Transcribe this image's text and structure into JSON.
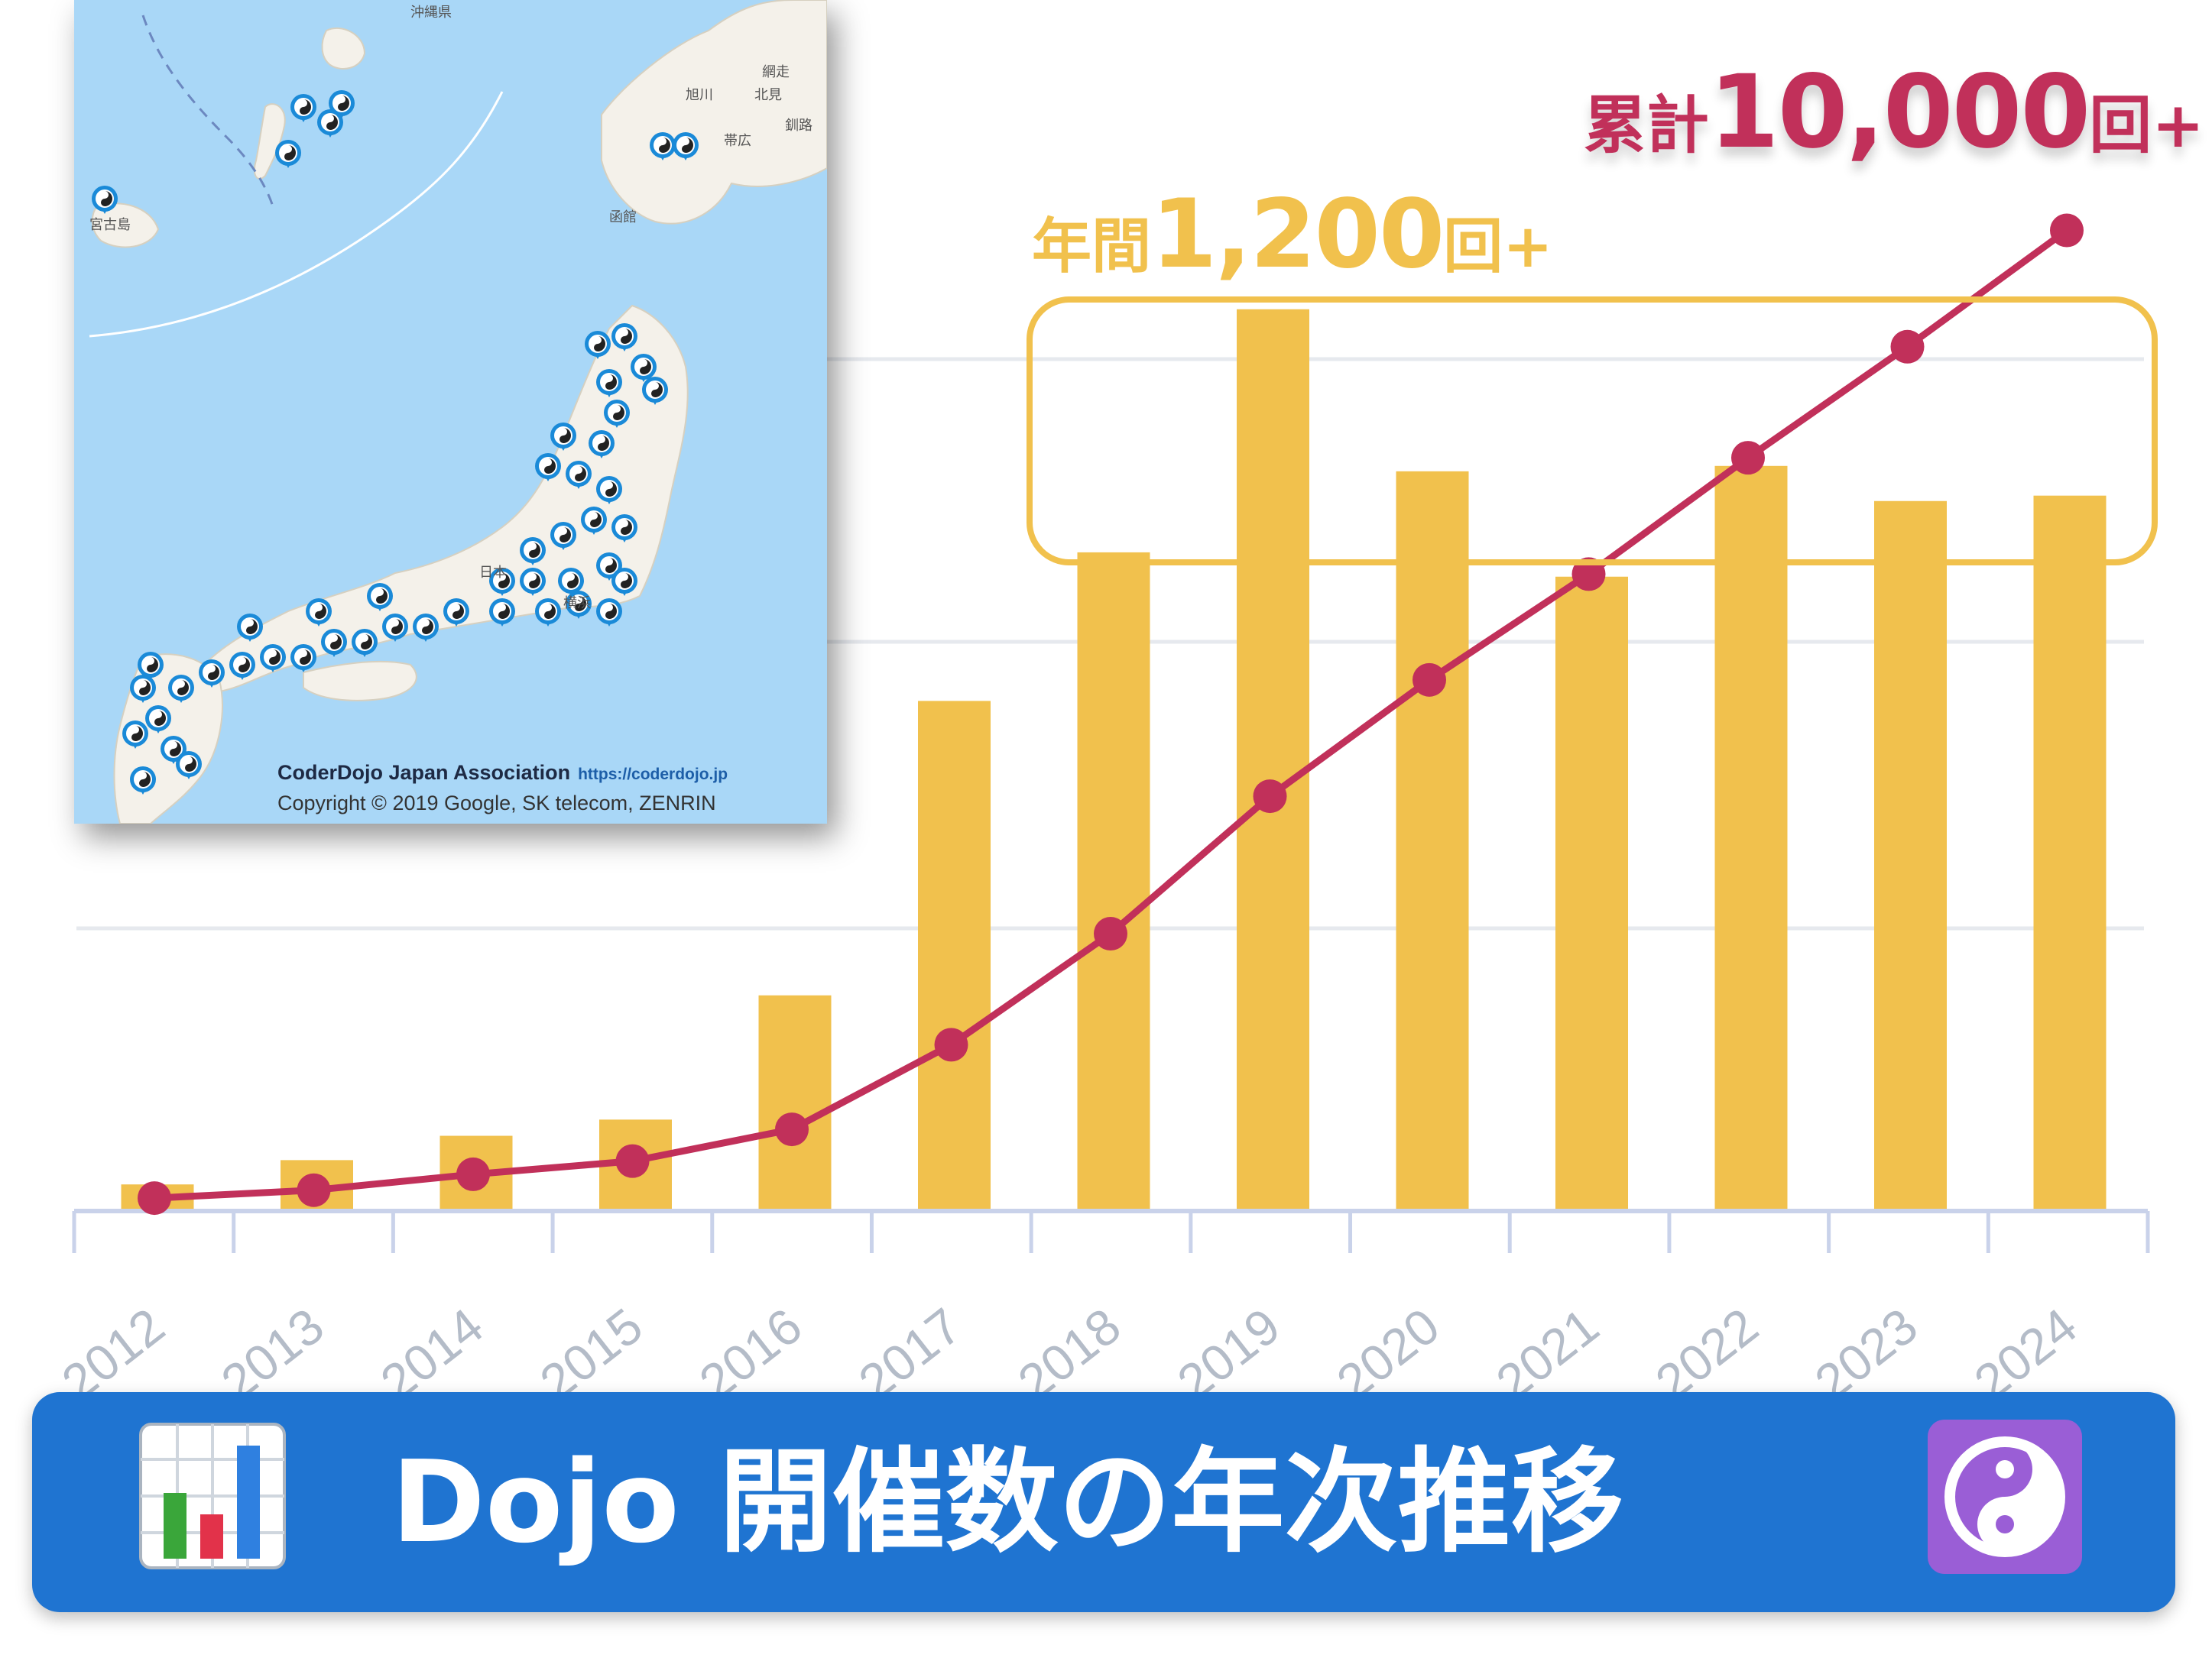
{
  "chart_data": {
    "type": "bar",
    "categories": [
      "2012",
      "2013",
      "2014",
      "2015",
      "2016",
      "2017",
      "2018",
      "2019",
      "2020",
      "2021",
      "2022",
      "2023",
      "2024"
    ],
    "series": [
      {
        "kind": "bar",
        "values": [
          90,
          180,
          270,
          330,
          790,
          1880,
          2430,
          3330,
          2730,
          2340,
          2750,
          2620,
          2640
        ],
        "color": "#f1c14d"
      },
      {
        "kind": "line",
        "values": [
          0.2,
          0.5,
          1.1,
          1.6,
          2.8,
          6.0,
          10.2,
          15.4,
          19.8,
          23.8,
          28.2,
          32.4,
          36.8
        ],
        "color": "#c1305a"
      }
    ],
    "grid": true,
    "legend": "none"
  },
  "annotations": {
    "cumulative": {
      "prefix": "累計",
      "number": "10,000",
      "suffix": "回+",
      "color": "#c1305a"
    },
    "annual": {
      "prefix": "年間",
      "number": "1,200",
      "suffix": "回+",
      "color": "#f1c14d"
    }
  },
  "map": {
    "credit": "CoderDojo Japan Association",
    "url": "https://coderdojo.jp",
    "copyright": "Copyright © 2019 Google, SK telecom, ZENRIN",
    "labels": [
      "沖縄県",
      "旭川",
      "北見",
      "網走",
      "帯広",
      "釧路",
      "函館",
      "日本",
      "横浜",
      "宮古島"
    ]
  },
  "banner": {
    "title": "Dojo 開催数の年次推移",
    "left_icon": "bar-chart-icon",
    "right_icon": "yin-yang-icon",
    "color": "#1f74d1"
  }
}
